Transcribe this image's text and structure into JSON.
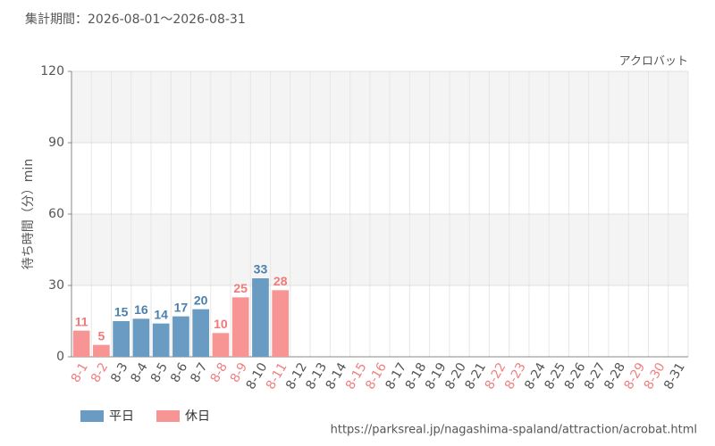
{
  "chart_data": {
    "type": "bar",
    "title": "集計期間：2026-08-01～2026-08-31",
    "subtitle": "アクロバット",
    "y_label": "待ち時間（分）min",
    "source": "https://parksreal.jp/nagashima-spaland/attraction/acrobat.html",
    "categories": [
      "8-1",
      "8-2",
      "8-3",
      "8-4",
      "8-5",
      "8-6",
      "8-7",
      "8-8",
      "8-9",
      "8-10",
      "8-11",
      "8-12",
      "8-13",
      "8-14",
      "8-15",
      "8-16",
      "8-17",
      "8-18",
      "8-19",
      "8-20",
      "8-21",
      "8-22",
      "8-23",
      "8-24",
      "8-25",
      "8-26",
      "8-27",
      "8-28",
      "8-29",
      "8-30",
      "8-31"
    ],
    "category_colors": [
      "#f08080",
      "#f08080",
      "#555555",
      "#555555",
      "#555555",
      "#555555",
      "#555555",
      "#f08080",
      "#f08080",
      "#555555",
      "#f08080",
      "#555555",
      "#555555",
      "#555555",
      "#f08080",
      "#f08080",
      "#555555",
      "#555555",
      "#555555",
      "#555555",
      "#555555",
      "#f08080",
      "#f08080",
      "#555555",
      "#555555",
      "#555555",
      "#555555",
      "#555555",
      "#f08080",
      "#f08080",
      "#555555"
    ],
    "series": [
      {
        "name": "平日",
        "color": "#6a9bc3",
        "label_color": "#4a7fae",
        "values": [
          null,
          null,
          15,
          16,
          14,
          17,
          20,
          null,
          null,
          33,
          null,
          null,
          null,
          null,
          null,
          null,
          null,
          null,
          null,
          null,
          null,
          null,
          null,
          null,
          null,
          null,
          null,
          null,
          null,
          null,
          null
        ]
      },
      {
        "name": "休日",
        "color": "#f79494",
        "label_color": "#f07a7a",
        "values": [
          11,
          5,
          null,
          null,
          null,
          null,
          null,
          10,
          25,
          null,
          28,
          null,
          null,
          null,
          null,
          null,
          null,
          null,
          null,
          null,
          null,
          null,
          null,
          null,
          null,
          null,
          null,
          null,
          null,
          null,
          null
        ]
      }
    ],
    "ylim": [
      0,
      120
    ],
    "yticks": [
      0,
      30,
      60,
      90,
      120
    ],
    "grid": true,
    "legend": "bottom-left"
  }
}
